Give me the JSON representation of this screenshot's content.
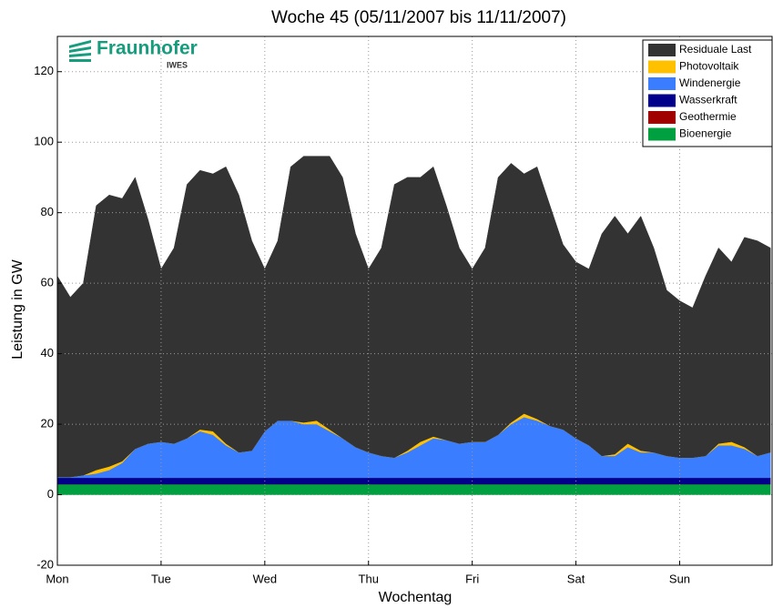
{
  "chart_data": {
    "type": "stacked_area",
    "title": "Woche 45  (05/11/2007 bis 11/11/2007)",
    "x_label": "Wochentag",
    "y_label": "Leistung in GW",
    "logo": {
      "name": "Fraunhofer",
      "sub": "IWES"
    },
    "x": [
      0,
      0.125,
      0.25,
      0.375,
      0.5,
      0.625,
      0.75,
      0.875,
      1,
      1.125,
      1.25,
      1.375,
      1.5,
      1.625,
      1.75,
      1.875,
      2,
      2.125,
      2.25,
      2.375,
      2.5,
      2.625,
      2.75,
      2.875,
      3,
      3.125,
      3.25,
      3.375,
      3.5,
      3.625,
      3.75,
      3.875,
      4,
      4.125,
      4.25,
      4.375,
      4.5,
      4.625,
      4.75,
      4.875,
      5,
      5.125,
      5.25,
      5.375,
      5.5,
      5.625,
      5.75,
      5.875,
      6,
      6.125,
      6.25,
      6.375,
      6.5,
      6.625,
      6.75,
      6.875
    ],
    "xlim": [
      0,
      6.9
    ],
    "xticks": [
      {
        "value": 0,
        "label": "Mon"
      },
      {
        "value": 1,
        "label": "Tue"
      },
      {
        "value": 2,
        "label": "Wed"
      },
      {
        "value": 3,
        "label": "Thu"
      },
      {
        "value": 4,
        "label": "Fri"
      },
      {
        "value": 5,
        "label": "Sat"
      },
      {
        "value": 6,
        "label": "Sun"
      }
    ],
    "ylim": [
      -20,
      130
    ],
    "yticks": [
      -20,
      0,
      20,
      40,
      60,
      80,
      100,
      120
    ],
    "grid": true,
    "legend": "upper right",
    "series": [
      {
        "name": "Bioenergie",
        "color": "#00a040",
        "values": [
          3,
          3,
          3,
          3,
          3,
          3,
          3,
          3,
          3,
          3,
          3,
          3,
          3,
          3,
          3,
          3,
          3,
          3,
          3,
          3,
          3,
          3,
          3,
          3,
          3,
          3,
          3,
          3,
          3,
          3,
          3,
          3,
          3,
          3,
          3,
          3,
          3,
          3,
          3,
          3,
          3,
          3,
          3,
          3,
          3,
          3,
          3,
          3,
          3,
          3,
          3,
          3,
          3,
          3,
          3,
          3
        ]
      },
      {
        "name": "Geothermie",
        "color": "#a00000",
        "values": [
          0.01,
          0.01,
          0.01,
          0.01,
          0.01,
          0.01,
          0.01,
          0.01,
          0.01,
          0.01,
          0.01,
          0.01,
          0.01,
          0.01,
          0.01,
          0.01,
          0.01,
          0.01,
          0.01,
          0.01,
          0.01,
          0.01,
          0.01,
          0.01,
          0.01,
          0.01,
          0.01,
          0.01,
          0.01,
          0.01,
          0.01,
          0.01,
          0.01,
          0.01,
          0.01,
          0.01,
          0.01,
          0.01,
          0.01,
          0.01,
          0.01,
          0.01,
          0.01,
          0.01,
          0.01,
          0.01,
          0.01,
          0.01,
          0.01,
          0.01,
          0.01,
          0.01,
          0.01,
          0.01,
          0.01,
          0.01
        ]
      },
      {
        "name": "Wasserkraft",
        "color": "#00008b",
        "values": [
          1.8,
          1.8,
          1.8,
          1.8,
          1.8,
          1.8,
          1.8,
          1.8,
          1.8,
          1.8,
          1.8,
          1.8,
          1.8,
          1.8,
          1.8,
          1.8,
          1.8,
          1.8,
          1.8,
          1.8,
          1.8,
          1.8,
          1.8,
          1.8,
          1.8,
          1.8,
          1.8,
          1.8,
          1.8,
          1.8,
          1.8,
          1.8,
          1.8,
          1.8,
          1.8,
          1.8,
          1.8,
          1.8,
          1.8,
          1.8,
          1.8,
          1.8,
          1.8,
          1.8,
          1.8,
          1.8,
          1.8,
          1.8,
          1.8,
          1.8,
          1.8,
          1.8,
          1.8,
          1.8,
          1.8,
          1.8
        ]
      },
      {
        "name": "Windenergie",
        "color": "#3a7dff",
        "values": [
          0.2,
          0.2,
          0.7,
          1.2,
          2.2,
          4.2,
          8.2,
          9.7,
          10.2,
          9.7,
          11.2,
          13.2,
          12.2,
          9.2,
          7.2,
          7.7,
          13.2,
          16.2,
          16.2,
          15.2,
          15.2,
          13.2,
          11.2,
          8.7,
          7.2,
          6.2,
          5.7,
          7.2,
          9.2,
          11.2,
          10.7,
          9.7,
          10.2,
          10.2,
          12.2,
          15.2,
          17.2,
          16.2,
          14.7,
          13.7,
          11.2,
          9.2,
          6.2,
          6.2,
          8.7,
          7.2,
          7.2,
          6.2,
          5.7,
          5.7,
          6.2,
          9.2,
          9.2,
          8.2,
          6.2,
          7.2
        ]
      },
      {
        "name": "Photovoltaik",
        "color": "#ffc000",
        "values": [
          0,
          0,
          0,
          1,
          1,
          0.5,
          0,
          0,
          0,
          0,
          0,
          0.5,
          1,
          0.5,
          0,
          0,
          0,
          0,
          0,
          0.5,
          1,
          0.5,
          0,
          0,
          0,
          0,
          0,
          0.5,
          1,
          0.5,
          0,
          0,
          0,
          0,
          0,
          0.5,
          1,
          0.5,
          0,
          0,
          0,
          0,
          0,
          0.5,
          1,
          0.5,
          0,
          0,
          0,
          0,
          0,
          0.5,
          1,
          0.5,
          0,
          0
        ]
      },
      {
        "name": "Residuale Last",
        "color": "#333333",
        "values": [
          57,
          51,
          54.5,
          75,
          77,
          74.5,
          77,
          63.5,
          49,
          55.5,
          72,
          73.5,
          73,
          78.5,
          73,
          59.5,
          46,
          51,
          72,
          75.5,
          75,
          77.5,
          74,
          60.5,
          52,
          59,
          77.5,
          77.5,
          75,
          76.5,
          66.5,
          55.5,
          49,
          55,
          73,
          73.5,
          68,
          71.5,
          62.5,
          52.5,
          50,
          50,
          63,
          67.5,
          59.5,
          66.5,
          58,
          47,
          44.5,
          42.5,
          51,
          55.5,
          51,
          59.5,
          61,
          58
        ]
      }
    ]
  }
}
